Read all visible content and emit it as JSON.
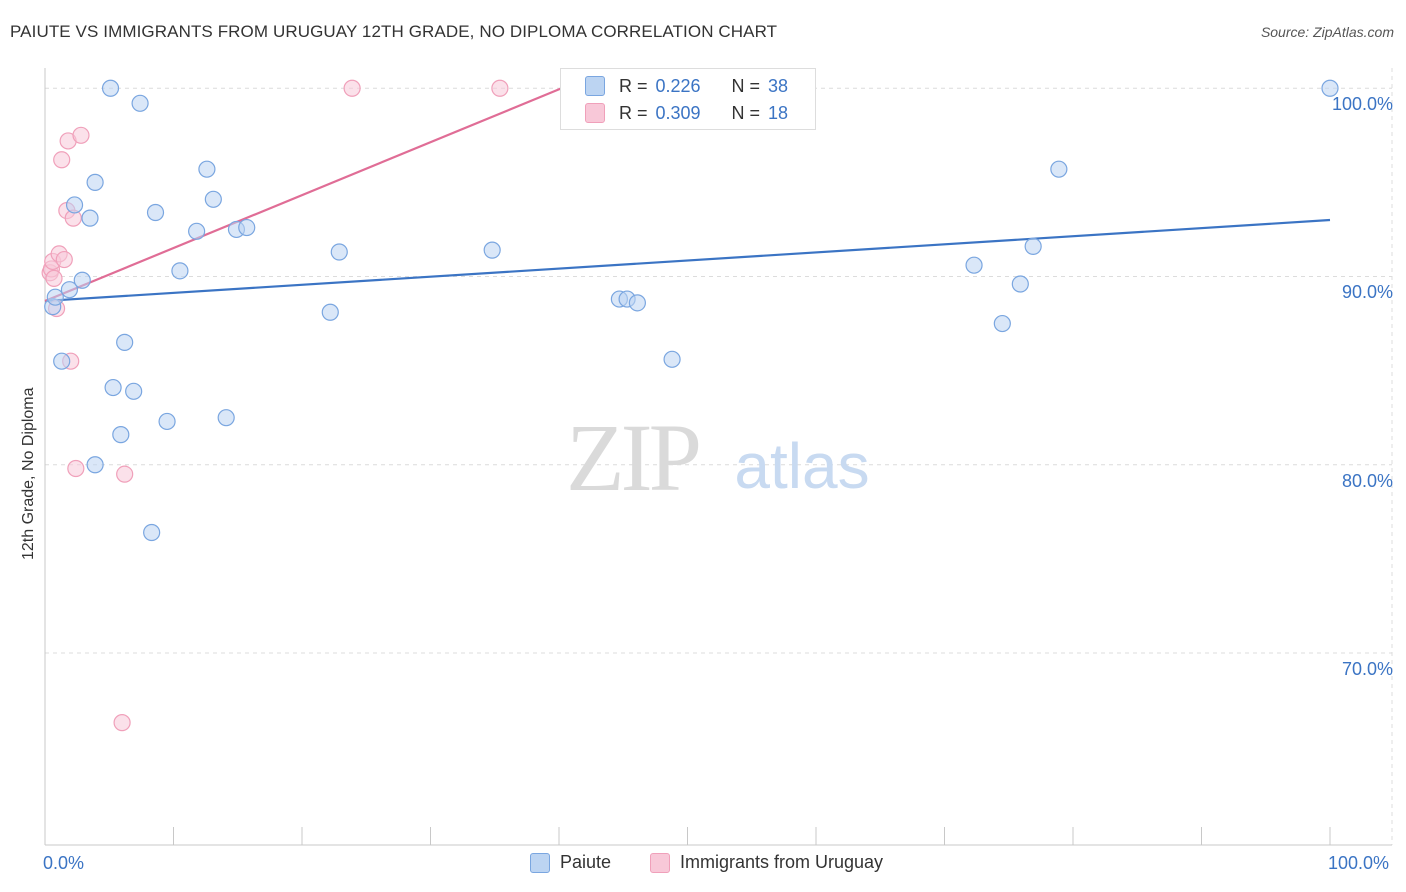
{
  "title": "PAIUTE VS IMMIGRANTS FROM URUGUAY 12TH GRADE, NO DIPLOMA CORRELATION CHART",
  "source": "Source: ZipAtlas.com",
  "watermark": {
    "zip": "ZIP",
    "atlas": "atlas"
  },
  "chart_data": {
    "type": "scatter",
    "xlabel": "",
    "ylabel": "12th Grade, No Diploma",
    "xlim": [
      0,
      100
    ],
    "ylim": [
      59.8,
      101.5
    ],
    "x_tick_labels": {
      "left": "0.0%",
      "right": "100.0%"
    },
    "y_ticks": [
      {
        "value": 100,
        "label": "100.0%"
      },
      {
        "value": 90,
        "label": "90.0%"
      },
      {
        "value": 80,
        "label": "80.0%"
      },
      {
        "value": 70,
        "label": "70.0%"
      }
    ],
    "grid": true,
    "legend_position": "bottom-center",
    "stats": [
      {
        "r_label": "R =",
        "r_value": "0.226",
        "n_label": "N =",
        "n_value": "38"
      },
      {
        "r_label": "R =",
        "r_value": "0.309",
        "n_label": "N =",
        "n_value": "18"
      }
    ],
    "series": [
      {
        "name": "Paiute",
        "color": "#7aa6e0",
        "fill": "#bcd4f2",
        "line_color": "#3b74c4",
        "trend": {
          "x": [
            0,
            100
          ],
          "y": [
            88.7,
            93.0
          ]
        },
        "points": [
          {
            "x": 0.6,
            "y": 88.4
          },
          {
            "x": 0.8,
            "y": 88.9
          },
          {
            "x": 1.3,
            "y": 85.5
          },
          {
            "x": 1.9,
            "y": 89.3
          },
          {
            "x": 2.3,
            "y": 93.8
          },
          {
            "x": 2.9,
            "y": 89.8
          },
          {
            "x": 3.5,
            "y": 93.1
          },
          {
            "x": 3.9,
            "y": 95.0
          },
          {
            "x": 3.9,
            "y": 80.0
          },
          {
            "x": 5.1,
            "y": 100.0
          },
          {
            "x": 5.3,
            "y": 84.1
          },
          {
            "x": 5.9,
            "y": 81.6
          },
          {
            "x": 6.2,
            "y": 86.5
          },
          {
            "x": 6.9,
            "y": 83.9
          },
          {
            "x": 7.4,
            "y": 99.2
          },
          {
            "x": 8.3,
            "y": 76.4
          },
          {
            "x": 8.6,
            "y": 93.4
          },
          {
            "x": 9.5,
            "y": 82.3
          },
          {
            "x": 10.5,
            "y": 90.3
          },
          {
            "x": 11.8,
            "y": 92.4
          },
          {
            "x": 12.6,
            "y": 95.7
          },
          {
            "x": 13.1,
            "y": 94.1
          },
          {
            "x": 14.1,
            "y": 82.5
          },
          {
            "x": 14.9,
            "y": 92.5
          },
          {
            "x": 15.7,
            "y": 92.6
          },
          {
            "x": 22.2,
            "y": 88.1
          },
          {
            "x": 22.9,
            "y": 91.3
          },
          {
            "x": 34.8,
            "y": 91.4
          },
          {
            "x": 44.7,
            "y": 88.8
          },
          {
            "x": 45.3,
            "y": 88.8
          },
          {
            "x": 46.1,
            "y": 88.6
          },
          {
            "x": 48.8,
            "y": 85.6
          },
          {
            "x": 72.3,
            "y": 90.6
          },
          {
            "x": 74.5,
            "y": 87.5
          },
          {
            "x": 75.9,
            "y": 89.6
          },
          {
            "x": 76.9,
            "y": 91.6
          },
          {
            "x": 78.9,
            "y": 95.7
          },
          {
            "x": 100.0,
            "y": 100.0
          }
        ]
      },
      {
        "name": "Immigrants from Uruguay",
        "color": "#f0a0ba",
        "fill": "#f8c8d8",
        "line_color": "#e06d96",
        "trend": {
          "x": [
            0,
            40.2
          ],
          "y": [
            88.7,
            100.0
          ]
        },
        "points": [
          {
            "x": 0.4,
            "y": 90.2
          },
          {
            "x": 0.5,
            "y": 90.4
          },
          {
            "x": 0.6,
            "y": 90.8
          },
          {
            "x": 0.7,
            "y": 89.9
          },
          {
            "x": 0.9,
            "y": 88.3
          },
          {
            "x": 1.1,
            "y": 91.2
          },
          {
            "x": 1.3,
            "y": 96.2
          },
          {
            "x": 1.5,
            "y": 90.9
          },
          {
            "x": 1.7,
            "y": 93.5
          },
          {
            "x": 1.8,
            "y": 97.2
          },
          {
            "x": 2.0,
            "y": 85.5
          },
          {
            "x": 2.2,
            "y": 93.1
          },
          {
            "x": 2.4,
            "y": 79.8
          },
          {
            "x": 2.8,
            "y": 97.5
          },
          {
            "x": 6.0,
            "y": 66.3
          },
          {
            "x": 6.2,
            "y": 79.5
          },
          {
            "x": 23.9,
            "y": 100.0
          },
          {
            "x": 35.4,
            "y": 100.0
          }
        ]
      }
    ]
  }
}
